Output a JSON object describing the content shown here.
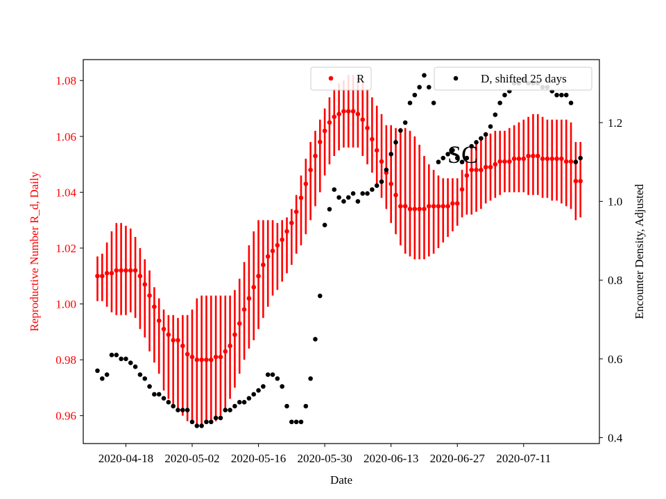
{
  "chart_data": {
    "type": "scatter",
    "xlabel": "Date",
    "ylabel_left": "Reproductive Number R_d, Daily",
    "ylabel_right": "Encounter Density, Adjusted",
    "annotation": "SC",
    "x_ticks": [
      "2020-04-18",
      "2020-05-02",
      "2020-05-16",
      "2020-05-30",
      "2020-06-13",
      "2020-06-27",
      "2020-07-11"
    ],
    "y_left_ticks": [
      "0.96",
      "0.98",
      "1.00",
      "1.02",
      "1.04",
      "1.06",
      "1.08"
    ],
    "y_right_ticks": [
      "0.4",
      "0.6",
      "0.8",
      "1.0",
      "1.2"
    ],
    "ylim_left": [
      0.95,
      1.0875
    ],
    "ylim_right": [
      0.385,
      1.36
    ],
    "xlim": [
      "2020-04-09",
      "2020-07-27"
    ],
    "grid": false,
    "colors": {
      "r_series": "#ff0000",
      "d_series": "#000000",
      "left_axis_text": "#ff0000"
    },
    "legend": [
      {
        "label": "R",
        "color": "#ff0000",
        "position": "top-center"
      },
      {
        "label": "D, shifted 25 days",
        "color": "#000000",
        "position": "top-right"
      }
    ],
    "series": [
      {
        "name": "R",
        "axis": "left",
        "x": [
          "2020-04-12",
          "2020-04-13",
          "2020-04-14",
          "2020-04-15",
          "2020-04-16",
          "2020-04-17",
          "2020-04-18",
          "2020-04-19",
          "2020-04-20",
          "2020-04-21",
          "2020-04-22",
          "2020-04-23",
          "2020-04-24",
          "2020-04-25",
          "2020-04-26",
          "2020-04-27",
          "2020-04-28",
          "2020-04-29",
          "2020-04-30",
          "2020-05-01",
          "2020-05-02",
          "2020-05-03",
          "2020-05-04",
          "2020-05-05",
          "2020-05-06",
          "2020-05-07",
          "2020-05-08",
          "2020-05-09",
          "2020-05-10",
          "2020-05-11",
          "2020-05-12",
          "2020-05-13",
          "2020-05-14",
          "2020-05-15",
          "2020-05-16",
          "2020-05-17",
          "2020-05-18",
          "2020-05-19",
          "2020-05-20",
          "2020-05-21",
          "2020-05-22",
          "2020-05-23",
          "2020-05-24",
          "2020-05-25",
          "2020-05-26",
          "2020-05-27",
          "2020-05-28",
          "2020-05-29",
          "2020-05-30",
          "2020-05-31",
          "2020-06-01",
          "2020-06-02",
          "2020-06-03",
          "2020-06-04",
          "2020-06-05",
          "2020-06-06",
          "2020-06-07",
          "2020-06-08",
          "2020-06-09",
          "2020-06-10",
          "2020-06-11",
          "2020-06-12",
          "2020-06-13",
          "2020-06-14",
          "2020-06-15",
          "2020-06-16",
          "2020-06-17",
          "2020-06-18",
          "2020-06-19",
          "2020-06-20",
          "2020-06-21",
          "2020-06-22",
          "2020-06-23",
          "2020-06-24",
          "2020-06-25",
          "2020-06-26",
          "2020-06-27",
          "2020-06-28",
          "2020-06-29",
          "2020-06-30",
          "2020-07-01",
          "2020-07-02",
          "2020-07-03",
          "2020-07-04",
          "2020-07-05",
          "2020-07-06",
          "2020-07-07",
          "2020-07-08",
          "2020-07-09",
          "2020-07-10",
          "2020-07-11",
          "2020-07-12",
          "2020-07-13",
          "2020-07-14",
          "2020-07-15",
          "2020-07-16",
          "2020-07-17",
          "2020-07-18",
          "2020-07-19",
          "2020-07-20",
          "2020-07-21",
          "2020-07-22",
          "2020-07-23"
        ],
        "y": [
          1.01,
          1.01,
          1.011,
          1.011,
          1.012,
          1.012,
          1.012,
          1.012,
          1.012,
          1.01,
          1.007,
          1.003,
          0.999,
          0.994,
          0.991,
          0.989,
          0.987,
          0.987,
          0.985,
          0.982,
          0.981,
          0.98,
          0.98,
          0.98,
          0.98,
          0.981,
          0.981,
          0.983,
          0.985,
          0.989,
          0.993,
          0.998,
          1.002,
          1.006,
          1.01,
          1.014,
          1.017,
          1.019,
          1.021,
          1.023,
          1.026,
          1.029,
          1.033,
          1.038,
          1.043,
          1.048,
          1.053,
          1.058,
          1.062,
          1.065,
          1.067,
          1.068,
          1.069,
          1.069,
          1.069,
          1.068,
          1.066,
          1.063,
          1.059,
          1.055,
          1.051,
          1.047,
          1.043,
          1.039,
          1.035,
          1.035,
          1.034,
          1.034,
          1.034,
          1.034,
          1.035,
          1.035,
          1.035,
          1.035,
          1.035,
          1.036,
          1.036,
          1.041,
          1.046,
          1.048,
          1.048,
          1.048,
          1.049,
          1.049,
          1.05,
          1.051,
          1.051,
          1.051,
          1.052,
          1.052,
          1.052,
          1.053,
          1.053,
          1.053,
          1.052,
          1.052,
          1.052,
          1.052,
          1.052,
          1.051,
          1.051,
          1.044,
          1.044
        ],
        "y_low": [
          1.001,
          1.001,
          0.999,
          0.997,
          0.996,
          0.996,
          0.996,
          0.997,
          0.995,
          0.991,
          0.988,
          0.983,
          0.979,
          0.975,
          0.969,
          0.966,
          0.963,
          0.962,
          0.96,
          0.958,
          0.957,
          0.956,
          0.956,
          0.957,
          0.957,
          0.958,
          0.96,
          0.962,
          0.966,
          0.97,
          0.975,
          0.98,
          0.984,
          0.987,
          0.991,
          0.995,
          0.999,
          1.003,
          1.005,
          1.008,
          1.011,
          1.014,
          1.018,
          1.021,
          1.025,
          1.03,
          1.035,
          1.04,
          1.046,
          1.05,
          1.053,
          1.055,
          1.056,
          1.056,
          1.056,
          1.056,
          1.053,
          1.05,
          1.047,
          1.043,
          1.038,
          1.034,
          1.029,
          1.025,
          1.021,
          1.018,
          1.017,
          1.016,
          1.016,
          1.016,
          1.017,
          1.018,
          1.02,
          1.022,
          1.024,
          1.026,
          1.028,
          1.031,
          1.032,
          1.032,
          1.033,
          1.034,
          1.036,
          1.037,
          1.038,
          1.039,
          1.04,
          1.04,
          1.04,
          1.04,
          1.04,
          1.039,
          1.039,
          1.039,
          1.038,
          1.038,
          1.037,
          1.037,
          1.036,
          1.035,
          1.034,
          1.03,
          1.031
        ],
        "y_high": [
          1.017,
          1.018,
          1.022,
          1.026,
          1.029,
          1.029,
          1.028,
          1.027,
          1.024,
          1.02,
          1.016,
          1.012,
          1.006,
          1.002,
          0.998,
          0.996,
          0.996,
          0.995,
          0.996,
          0.996,
          0.998,
          1.002,
          1.003,
          1.003,
          1.003,
          1.003,
          1.003,
          1.003,
          1.003,
          1.005,
          1.009,
          1.015,
          1.021,
          1.026,
          1.03,
          1.03,
          1.03,
          1.03,
          1.029,
          1.03,
          1.031,
          1.034,
          1.039,
          1.046,
          1.052,
          1.058,
          1.062,
          1.066,
          1.07,
          1.074,
          1.077,
          1.079,
          1.08,
          1.082,
          1.082,
          1.081,
          1.08,
          1.077,
          1.074,
          1.071,
          1.068,
          1.064,
          1.064,
          1.063,
          1.063,
          1.063,
          1.062,
          1.06,
          1.057,
          1.053,
          1.05,
          1.048,
          1.046,
          1.045,
          1.045,
          1.045,
          1.045,
          1.048,
          1.051,
          1.056,
          1.058,
          1.059,
          1.06,
          1.061,
          1.062,
          1.062,
          1.062,
          1.063,
          1.064,
          1.065,
          1.066,
          1.067,
          1.068,
          1.068,
          1.067,
          1.066,
          1.066,
          1.066,
          1.066,
          1.066,
          1.065,
          1.058,
          1.058
        ]
      },
      {
        "name": "D, shifted 25 days",
        "axis": "right",
        "x": [
          "2020-04-12",
          "2020-04-13",
          "2020-04-14",
          "2020-04-15",
          "2020-04-16",
          "2020-04-17",
          "2020-04-18",
          "2020-04-19",
          "2020-04-20",
          "2020-04-21",
          "2020-04-22",
          "2020-04-23",
          "2020-04-24",
          "2020-04-25",
          "2020-04-26",
          "2020-04-27",
          "2020-04-28",
          "2020-04-29",
          "2020-04-30",
          "2020-05-01",
          "2020-05-02",
          "2020-05-03",
          "2020-05-04",
          "2020-05-05",
          "2020-05-06",
          "2020-05-07",
          "2020-05-08",
          "2020-05-09",
          "2020-05-10",
          "2020-05-11",
          "2020-05-12",
          "2020-05-13",
          "2020-05-14",
          "2020-05-15",
          "2020-05-16",
          "2020-05-17",
          "2020-05-18",
          "2020-05-19",
          "2020-05-20",
          "2020-05-21",
          "2020-05-22",
          "2020-05-23",
          "2020-05-24",
          "2020-05-25",
          "2020-05-26",
          "2020-05-27",
          "2020-05-28",
          "2020-05-29",
          "2020-05-30",
          "2020-05-31",
          "2020-06-01",
          "2020-06-02",
          "2020-06-03",
          "2020-06-04",
          "2020-06-05",
          "2020-06-06",
          "2020-06-07",
          "2020-06-08",
          "2020-06-09",
          "2020-06-10",
          "2020-06-11",
          "2020-06-12",
          "2020-06-13",
          "2020-06-14",
          "2020-06-15",
          "2020-06-16",
          "2020-06-17",
          "2020-06-18",
          "2020-06-19",
          "2020-06-20",
          "2020-06-21",
          "2020-06-22",
          "2020-06-23",
          "2020-06-24",
          "2020-06-25",
          "2020-06-26",
          "2020-06-27",
          "2020-06-28",
          "2020-06-29",
          "2020-06-30",
          "2020-07-01",
          "2020-07-02",
          "2020-07-03",
          "2020-07-04",
          "2020-07-05",
          "2020-07-06",
          "2020-07-07",
          "2020-07-08",
          "2020-07-09",
          "2020-07-10",
          "2020-07-11",
          "2020-07-12",
          "2020-07-13",
          "2020-07-14",
          "2020-07-15",
          "2020-07-16",
          "2020-07-17",
          "2020-07-18",
          "2020-07-19",
          "2020-07-20",
          "2020-07-21",
          "2020-07-22",
          "2020-07-23"
        ],
        "y": [
          0.57,
          0.55,
          0.56,
          0.61,
          0.61,
          0.6,
          0.6,
          0.59,
          0.58,
          0.56,
          0.55,
          0.53,
          0.51,
          0.51,
          0.5,
          0.49,
          0.48,
          0.47,
          0.47,
          0.47,
          0.44,
          0.43,
          0.43,
          0.44,
          0.44,
          0.45,
          0.45,
          0.47,
          0.47,
          0.48,
          0.49,
          0.49,
          0.5,
          0.51,
          0.52,
          0.53,
          0.56,
          0.56,
          0.55,
          0.53,
          0.48,
          0.44,
          0.44,
          0.44,
          0.48,
          0.55,
          0.65,
          0.76,
          0.94,
          0.98,
          1.03,
          1.01,
          1.0,
          1.01,
          1.02,
          1.0,
          1.02,
          1.02,
          1.03,
          1.04,
          1.05,
          1.08,
          1.12,
          1.15,
          1.18,
          1.2,
          1.25,
          1.27,
          1.29,
          1.32,
          1.29,
          1.25,
          1.1,
          1.11,
          1.12,
          1.13,
          1.11,
          1.1,
          1.11,
          1.14,
          1.15,
          1.16,
          1.17,
          1.19,
          1.22,
          1.25,
          1.27,
          1.28,
          1.3,
          1.3,
          1.31,
          1.3,
          1.3,
          1.3,
          1.29,
          1.29,
          1.28,
          1.27,
          1.27,
          1.27,
          1.25,
          1.1,
          1.11
        ]
      }
    ]
  }
}
